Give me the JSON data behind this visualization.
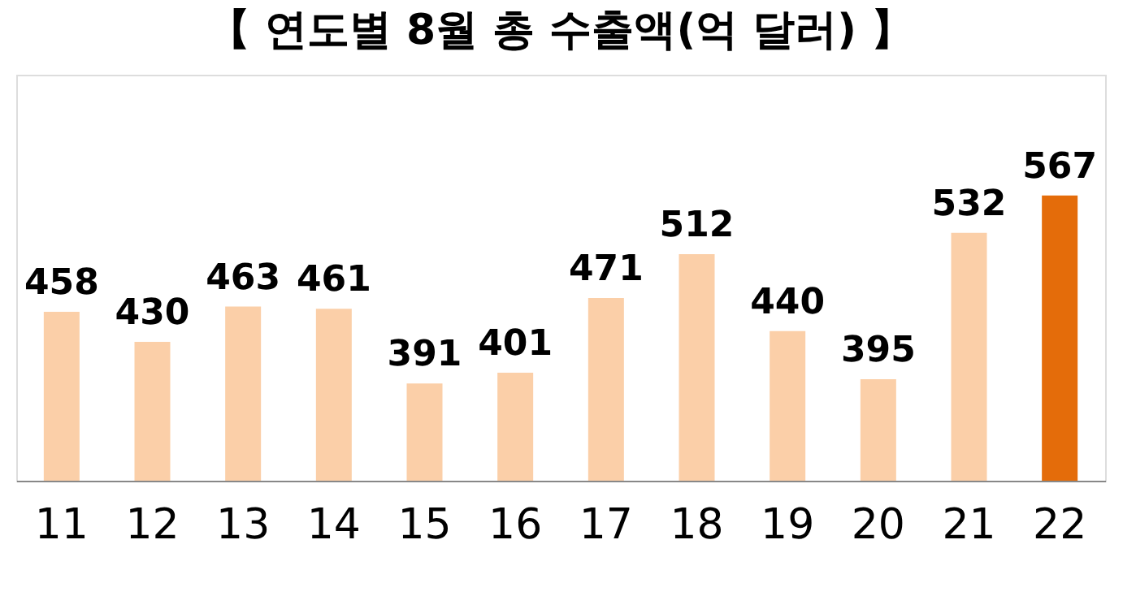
{
  "chart_data": {
    "type": "bar",
    "title": "【 연도별 8월 총 수출액(억 달러) 】",
    "categories": [
      "11",
      "12",
      "13",
      "14",
      "15",
      "16",
      "17",
      "18",
      "19",
      "20",
      "21",
      "22"
    ],
    "values": [
      458,
      430,
      463,
      461,
      391,
      401,
      471,
      512,
      440,
      395,
      532,
      567
    ],
    "colors": [
      "#fbcfa8",
      "#fbcfa8",
      "#fbcfa8",
      "#fbcfa8",
      "#fbcfa8",
      "#fbcfa8",
      "#fbcfa8",
      "#fbcfa8",
      "#fbcfa8",
      "#fbcfa8",
      "#fbcfa8",
      "#e46c0a"
    ],
    "ylim": [
      300,
      680
    ],
    "tick_labels": "x",
    "data_labels": true,
    "grid": false
  }
}
